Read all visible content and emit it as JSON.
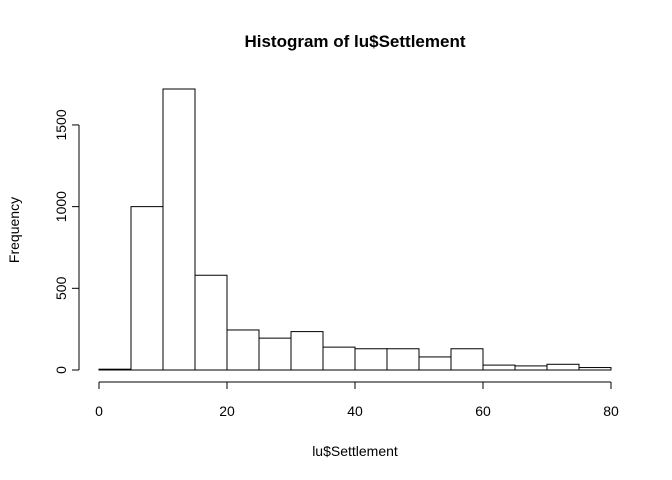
{
  "chart_data": {
    "type": "bar",
    "title": "Histogram of lu$Settlement",
    "xlabel": "lu$Settlement",
    "ylabel": "Frequency",
    "bins": [
      {
        "x0": 0,
        "x1": 5,
        "count": 5
      },
      {
        "x0": 5,
        "x1": 10,
        "count": 1000
      },
      {
        "x0": 10,
        "x1": 15,
        "count": 1720
      },
      {
        "x0": 15,
        "x1": 20,
        "count": 580
      },
      {
        "x0": 20,
        "x1": 25,
        "count": 245
      },
      {
        "x0": 25,
        "x1": 30,
        "count": 195
      },
      {
        "x0": 30,
        "x1": 35,
        "count": 235
      },
      {
        "x0": 35,
        "x1": 40,
        "count": 140
      },
      {
        "x0": 40,
        "x1": 45,
        "count": 130
      },
      {
        "x0": 45,
        "x1": 50,
        "count": 130
      },
      {
        "x0": 50,
        "x1": 55,
        "count": 80
      },
      {
        "x0": 55,
        "x1": 60,
        "count": 130
      },
      {
        "x0": 60,
        "x1": 65,
        "count": 30
      },
      {
        "x0": 65,
        "x1": 70,
        "count": 25
      },
      {
        "x0": 70,
        "x1": 75,
        "count": 35
      },
      {
        "x0": 75,
        "x1": 80,
        "count": 15
      }
    ],
    "x_ticks": [
      0,
      20,
      40,
      60,
      80
    ],
    "y_ticks": [
      0,
      500,
      1000,
      1500
    ],
    "xlim": [
      0,
      80
    ],
    "ylim": [
      0,
      1720
    ],
    "grid": false,
    "bar_fill": "#ffffff",
    "bar_stroke": "#000000"
  }
}
